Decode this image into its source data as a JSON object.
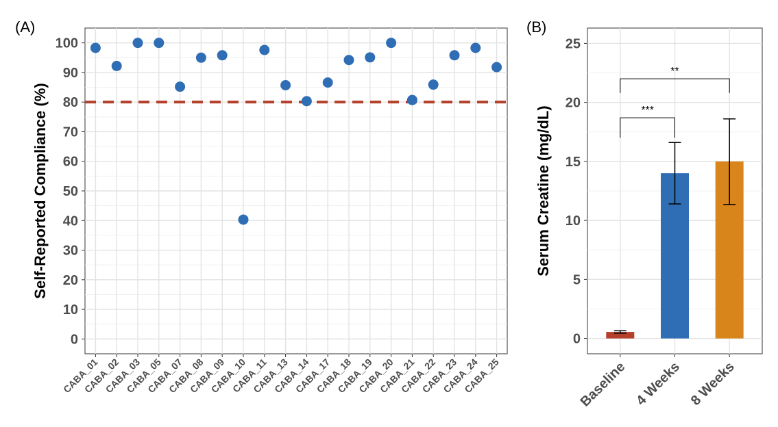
{
  "chart_data": [
    {
      "panel_label": "(A)",
      "type": "scatter",
      "ylabel": "Self-Reported Compliance (%)",
      "xlabel": "",
      "ylim": [
        -5,
        105
      ],
      "yticks": [
        0,
        10,
        20,
        30,
        40,
        50,
        60,
        70,
        80,
        90,
        100
      ],
      "grid": true,
      "categories": [
        "CABA_01",
        "CABA_02",
        "CABA_03",
        "CABA_05",
        "CABA_07",
        "CABA_08",
        "CABA_09",
        "CABA_10",
        "CABA_11",
        "CABA_13",
        "CABA_14",
        "CABA_17",
        "CABA_18",
        "CABA_19",
        "CABA_20",
        "CABA_21",
        "CABA_22",
        "CABA_23",
        "CABA_24",
        "CABA_25"
      ],
      "values": [
        98.3,
        92.2,
        100,
        100,
        85.2,
        95,
        95.8,
        40.3,
        97.6,
        85.7,
        80.3,
        86.6,
        94.2,
        95.1,
        100,
        80.7,
        85.9,
        95.8,
        98.3,
        91.8
      ],
      "point_color": "#2f6eb5",
      "reference_line": {
        "y": 80,
        "style": "dashed",
        "color": "#b5402a"
      }
    },
    {
      "panel_label": "(B)",
      "type": "bar",
      "ylabel": "Serum Creatine (mg/dL)",
      "xlabel": "",
      "ylim": [
        -1.3,
        26.3
      ],
      "yticks": [
        0,
        5,
        10,
        15,
        20,
        25
      ],
      "grid": true,
      "categories": [
        "Baseline",
        "4 Weeks",
        "8 Weeks"
      ],
      "values": [
        0.55,
        14.0,
        15.0
      ],
      "error_low": [
        0.45,
        11.4,
        11.35
      ],
      "error_high": [
        0.65,
        16.6,
        18.6
      ],
      "colors": [
        "#b5402a",
        "#2f6eb5",
        "#d8861c"
      ],
      "significance": [
        {
          "from": 0,
          "to": 1,
          "label": "***",
          "y": 18.7,
          "drop_left": 17.0,
          "drop_right": 17.0
        },
        {
          "from": 0,
          "to": 2,
          "label": "**",
          "y": 22.0,
          "drop_left": 20.8,
          "drop_right": 20.8
        }
      ]
    }
  ]
}
